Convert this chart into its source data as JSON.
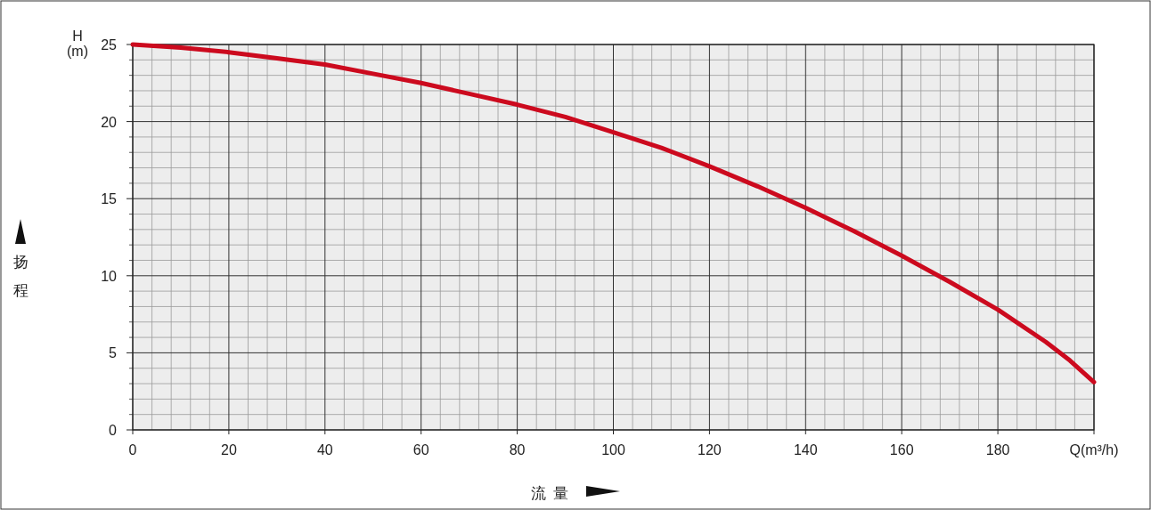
{
  "chart_data": {
    "type": "line",
    "xlabel": "流量",
    "ylabel": "扬程",
    "annotations": [
      "H (m)"
    ],
    "x": [
      0,
      10,
      20,
      30,
      40,
      50,
      60,
      70,
      80,
      90,
      100,
      110,
      120,
      130,
      140,
      150,
      160,
      170,
      180,
      190,
      195,
      200
    ],
    "series": [
      {
        "color": "#cc0a1e",
        "values": [
          25,
          24.8,
          24.5,
          24.1,
          23.7,
          23.1,
          22.5,
          21.8,
          21.1,
          20.3,
          19.3,
          18.3,
          17.1,
          15.8,
          14.4,
          12.9,
          11.3,
          9.6,
          7.8,
          5.7,
          4.5,
          3.1
        ]
      }
    ],
    "xlim": [
      0,
      200
    ],
    "ylim": [
      0,
      25
    ],
    "xticks": [
      0,
      20,
      40,
      60,
      80,
      100,
      120,
      140,
      160,
      180,
      {
        "value": 200,
        "label": "Q(m³/h)"
      }
    ],
    "yticks": [
      0,
      5,
      10,
      15,
      20,
      25
    ],
    "grid": true,
    "line_style": "solid",
    "marker": "none"
  }
}
